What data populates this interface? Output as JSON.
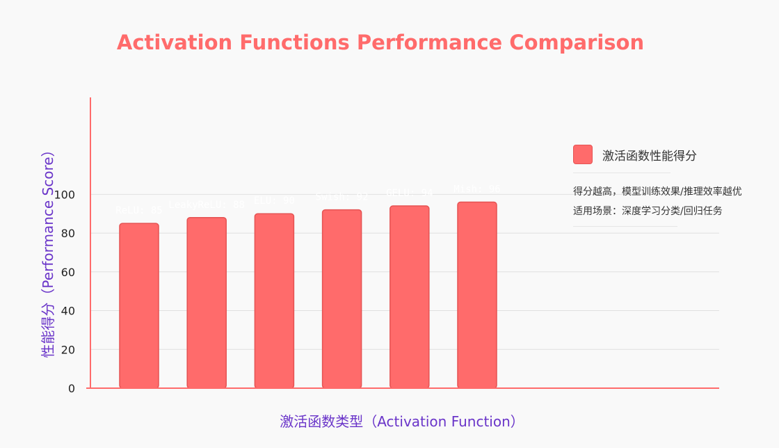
{
  "chart_data": {
    "type": "bar",
    "title": "Activation Functions Performance Comparison",
    "xlabel": "激活函数类型（Activation Function）",
    "ylabel": "性能得分（Performance Score）",
    "categories": [
      "ReLU",
      "LeakyReLU",
      "ELU",
      "Swish",
      "GELU",
      "Mish"
    ],
    "series": [
      {
        "name": "激活函数性能得分",
        "values": [
          85,
          88,
          90,
          92,
          94,
          96
        ],
        "labels": [
          "ReLU: 85",
          "LeakyReLU: 88",
          "ELU: 90",
          "Swish: 92",
          "GELU: 94",
          "Mish: 96"
        ]
      }
    ],
    "yticks": [
      0,
      20,
      40,
      60,
      80,
      100
    ],
    "ylim": [
      0,
      150
    ],
    "grid": true,
    "legend_position": "right",
    "colors": {
      "bar": "#ff6b6b",
      "bar_border": "#e55353",
      "title": "#ff6b6b",
      "axis_title": "#6a35c9",
      "axis_line": "#ff6b6b",
      "grid": "#e0e0e0",
      "tick_text": "#222222",
      "data_label": "#ffffff"
    }
  },
  "legend": {
    "label": "激活函数性能得分",
    "notes": [
      "得分越高，模型训练效果/推理效率越优",
      "适用场景：深度学习分类/回归任务"
    ]
  }
}
